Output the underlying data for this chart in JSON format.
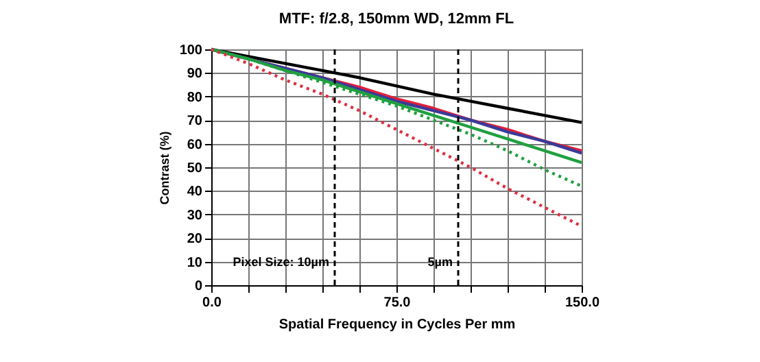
{
  "chart_data": {
    "type": "line",
    "title": "MTF: f/2.8, 150mm WD, 12mm FL",
    "xlabel": "Spatial Frequency in Cycles Per mm",
    "ylabel": "Contrast (%)",
    "x": [
      0,
      15,
      30,
      45,
      60,
      75,
      90,
      105,
      120,
      135,
      150
    ],
    "series": [
      {
        "color": "#000000",
        "line_style": "solid",
        "values": [
          100,
          97,
          94,
          91,
          88,
          84.5,
          81,
          78,
          75,
          72,
          69
        ]
      },
      {
        "color": "#e0203a",
        "line_style": "solid",
        "values": [
          100,
          96,
          92,
          88,
          84,
          79,
          75,
          70,
          66,
          61,
          57
        ]
      },
      {
        "color": "#3a3a9a",
        "line_style": "solid",
        "values": [
          100,
          96,
          92,
          88,
          83,
          78,
          74,
          70,
          65,
          61,
          56
        ]
      },
      {
        "color": "#20a040",
        "line_style": "solid",
        "values": [
          100,
          96,
          91,
          87,
          82,
          77,
          72,
          67,
          62,
          57,
          52
        ]
      },
      {
        "color": "#20a040",
        "line_style": "dotted",
        "values": [
          100,
          96,
          91,
          86,
          81,
          76,
          70,
          64,
          57,
          49,
          42
        ]
      },
      {
        "color": "#e03040",
        "line_style": "dotted",
        "values": [
          100,
          94,
          87,
          81,
          74,
          66,
          58,
          50,
          41,
          33,
          25
        ]
      }
    ],
    "xlim": [
      0,
      150
    ],
    "xticks": [
      {
        "value": 0,
        "label": "0.0"
      },
      {
        "value": 15,
        "label": null
      },
      {
        "value": 30,
        "label": null
      },
      {
        "value": 45,
        "label": null
      },
      {
        "value": 60,
        "label": null
      },
      {
        "value": 75,
        "label": "75.0"
      },
      {
        "value": 90,
        "label": null
      },
      {
        "value": 105,
        "label": null
      },
      {
        "value": 120,
        "label": null
      },
      {
        "value": 135,
        "label": null
      },
      {
        "value": 150,
        "label": "150.0"
      }
    ],
    "ylim": [
      0,
      100
    ],
    "yticks": [
      0,
      10,
      20,
      30,
      40,
      50,
      60,
      70,
      80,
      90,
      100
    ],
    "ref_lines": [
      {
        "axis": "x",
        "value": 50,
        "color": "#000000",
        "line_style": "dashed"
      },
      {
        "axis": "x",
        "value": 100,
        "color": "#000000",
        "line_style": "dashed"
      }
    ],
    "annotations": [
      {
        "text": "Pixel Size:  10µm",
        "x": 50,
        "y": 10
      },
      {
        "text": "5µm",
        "x": 100,
        "y": 10
      }
    ],
    "grid": true,
    "marker": "none"
  }
}
